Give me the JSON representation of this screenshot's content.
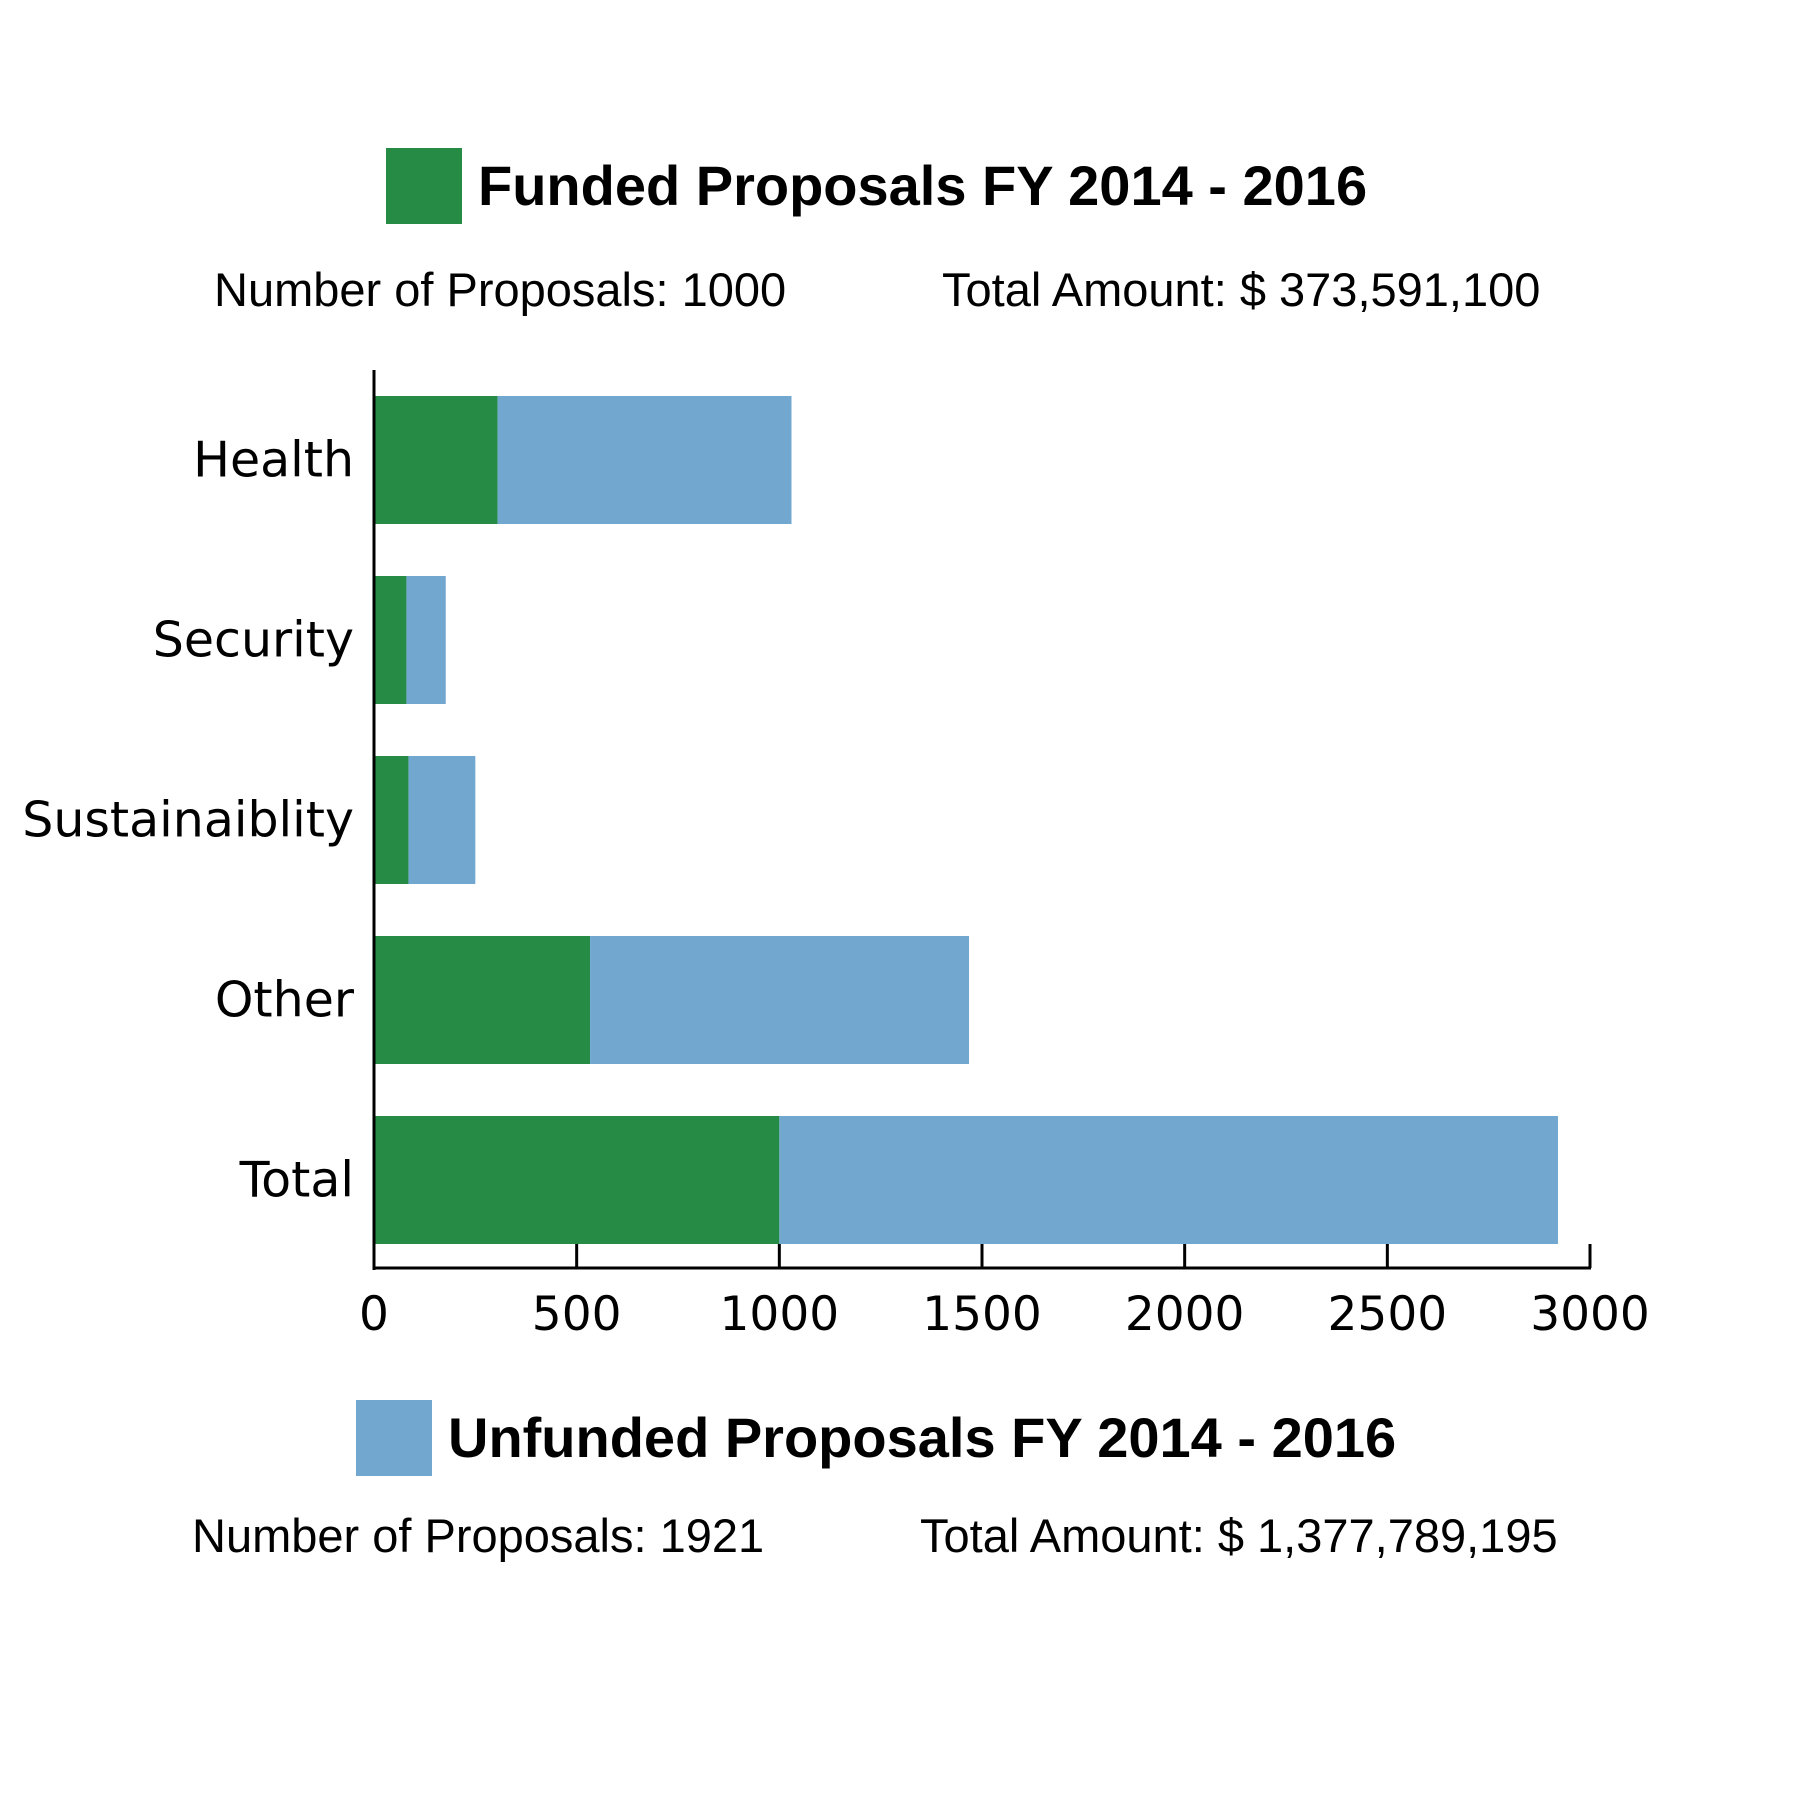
{
  "legend": {
    "funded": {
      "title": "Funded Proposals FY 2014 - 2016",
      "count_text": "Number of Proposals:  1000",
      "amount_text": "Total Amount: $ 373,591,100",
      "color": "#268b45"
    },
    "unfunded": {
      "title": "Unfunded Proposals FY 2014 - 2016",
      "count_text": "Number of Proposals:  1921",
      "amount_text": "Total Amount: $ 1,377,789,195",
      "color": "#72a8cf"
    }
  },
  "chart_data": {
    "type": "bar",
    "orientation": "horizontal",
    "stacked": true,
    "categories": [
      "Health",
      "Security",
      "Sustainaiblity",
      "Other",
      "Total"
    ],
    "series": [
      {
        "name": "Funded Proposals FY 2014 - 2016",
        "color": "#268b45",
        "values": [
          305,
          80,
          85,
          533,
          1000
        ]
      },
      {
        "name": "Unfunded Proposals FY 2014 - 2016",
        "color": "#72a8cf",
        "values": [
          725,
          97,
          165,
          935,
          1921
        ]
      }
    ],
    "xlim": [
      0,
      3000
    ],
    "xticks": [
      0,
      500,
      1000,
      1500,
      2000,
      2500,
      3000
    ],
    "xtick_labels": [
      "0",
      "500",
      "1000",
      "1500",
      "2000",
      "2500",
      "3000"
    ],
    "grid": false,
    "title": "",
    "xlabel": "",
    "ylabel": ""
  }
}
